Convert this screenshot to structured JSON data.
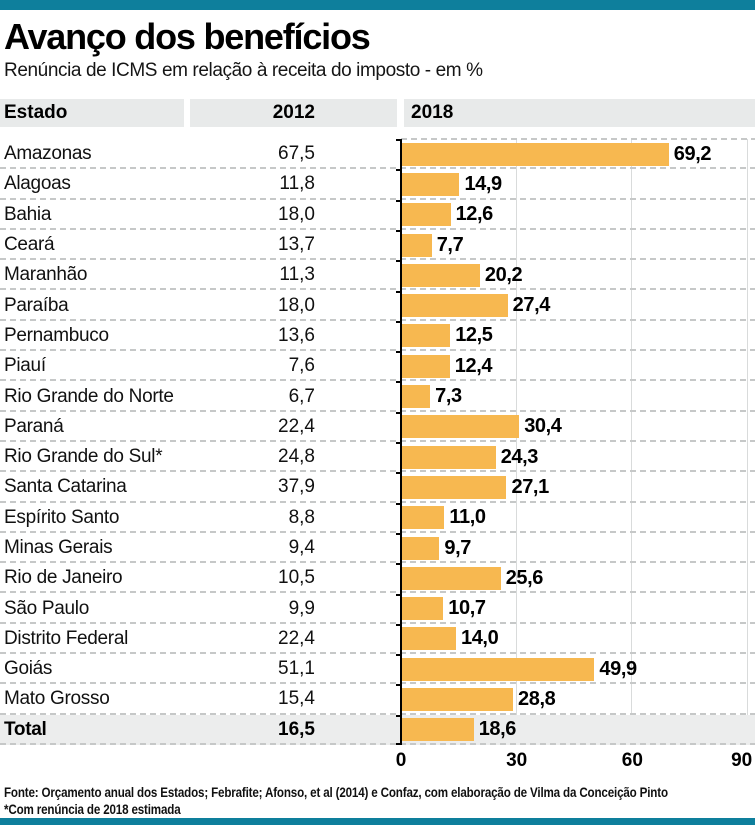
{
  "colors": {
    "accent_teal": "#0E7F9C",
    "bar_orange": "#F7B850",
    "header_row_bg": "#E8EAEA",
    "total_row_bg": "#ECEDED",
    "separator_gray": "#C6C8C8",
    "gridline_gray": "#D9DBDB"
  },
  "footer": {
    "source": "Fonte: Orçamento anual dos Estados; Febrafite; Afonso, et al (2014) e Confaz, com elaboração de Vilma da Conceição Pinto",
    "note": "*Com renúncia de 2018 estimada"
  },
  "chart_data": {
    "type": "bar",
    "orientation": "horizontal",
    "title": "Avanço dos benefícios",
    "subtitle": "Renúncia de ICMS em relação à receita do imposto - em %",
    "columns": [
      "Estado",
      "2012",
      "2018"
    ],
    "categories": [
      "Amazonas",
      "Alagoas",
      "Bahia",
      "Ceará",
      "Maranhão",
      "Paraíba",
      "Pernambuco",
      "Piauí",
      "Rio Grande do Norte",
      "Paraná",
      "Rio Grande do Sul*",
      "Santa Catarina",
      "Espírito Santo",
      "Minas Gerais",
      "Rio de Janeiro",
      "São Paulo",
      "Distrito Federal",
      "Goiás",
      "Mato Grosso",
      "Total"
    ],
    "series": [
      {
        "name": "2012",
        "values": [
          67.5,
          11.8,
          18.0,
          13.7,
          11.3,
          18.0,
          13.6,
          7.6,
          6.7,
          22.4,
          24.8,
          37.9,
          8.8,
          9.4,
          10.5,
          9.9,
          22.4,
          51.1,
          15.4,
          16.5
        ]
      },
      {
        "name": "2018",
        "values": [
          69.2,
          14.9,
          12.6,
          7.7,
          20.2,
          27.4,
          12.5,
          12.4,
          7.3,
          30.4,
          24.3,
          27.1,
          11.0,
          9.7,
          25.6,
          10.7,
          14.0,
          49.9,
          28.8,
          18.6
        ]
      }
    ],
    "xlim": [
      0,
      90
    ],
    "xticks": [
      0,
      30,
      60,
      90
    ],
    "grid": "vertical gridlines at 30, 60, 90",
    "legend": "none",
    "value_format": "comma decimal, 1 digit (pt-BR)",
    "total_row_label": "Total",
    "bars_series": "2018"
  }
}
